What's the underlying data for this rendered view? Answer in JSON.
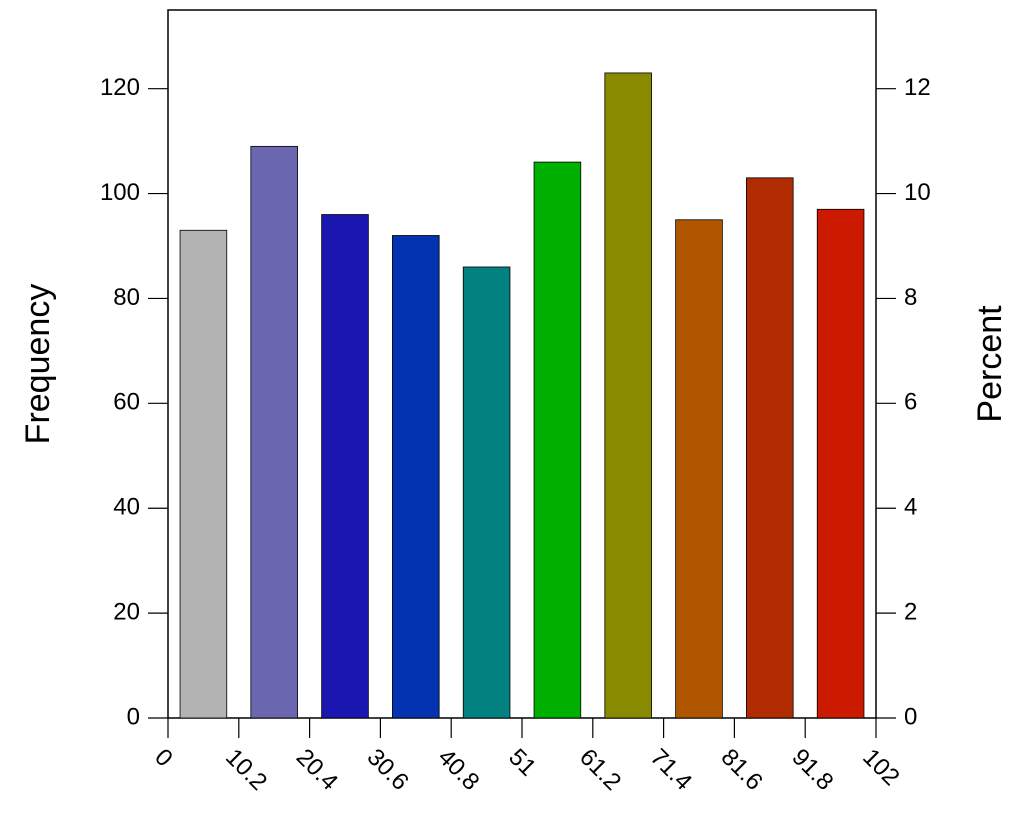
{
  "chart_data": {
    "type": "histogram",
    "bins": [
      0,
      10.2,
      20.4,
      30.6,
      40.8,
      51,
      61.2,
      71.4,
      81.6,
      91.8,
      102
    ],
    "values": [
      93,
      109,
      96,
      92,
      86,
      106,
      123,
      95,
      103,
      97
    ],
    "colors": [
      "#b3b3b3",
      "#6a66b0",
      "#1a17b0",
      "#0333b0",
      "#038080",
      "#00b000",
      "#8a8a00",
      "#b05500",
      "#b02c00",
      "#cc1a00"
    ],
    "xlim": [
      0,
      102
    ],
    "xticks": [
      0,
      10.2,
      20.4,
      30.6,
      40.8,
      51,
      61.2,
      71.4,
      81.6,
      91.8,
      102
    ],
    "ylim": [
      0,
      135
    ],
    "yticks": [
      0,
      20,
      40,
      60,
      80,
      100,
      120
    ],
    "y2lim": [
      0,
      13.5
    ],
    "y2ticks": [
      0,
      2,
      4,
      6,
      8,
      10,
      12
    ],
    "ylabel": "Frequency",
    "y2label": "Percent"
  }
}
